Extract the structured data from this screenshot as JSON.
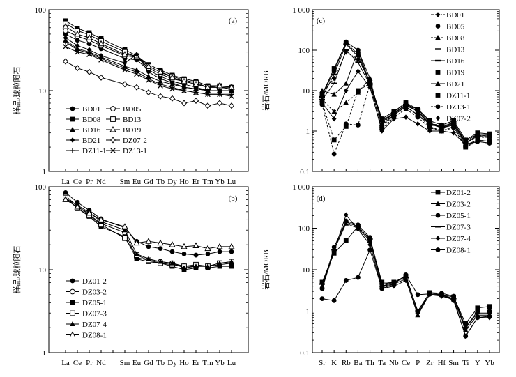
{
  "chart_data": [
    {
      "panel": "(a)",
      "type": "line",
      "ylabel": "样品/球粒陨石",
      "yscale": "log",
      "ylim": [
        1,
        100
      ],
      "yticks": [
        "1",
        "10",
        "100"
      ],
      "categories": [
        "La",
        "Ce",
        "Pr",
        "Nd",
        "Sm",
        "Eu",
        "Gd",
        "Tb",
        "Dy",
        "Ho",
        "Er",
        "Tm",
        "Yb",
        "Lu"
      ],
      "xlabels": [
        "La",
        "Ce",
        "Pr",
        "Nd",
        "",
        "Sm",
        "Eu",
        "Gd",
        "Tb",
        "Dy",
        "Ho",
        "Er",
        "Tm",
        "Yb",
        "Lu"
      ],
      "legend_cols": 2,
      "series": [
        {
          "name": "BD01",
          "marker": "circle",
          "values": [
            50,
            42,
            38,
            33,
            25,
            24,
            18,
            15,
            13,
            12,
            11,
            10,
            10,
            10
          ]
        },
        {
          "name": "BD05",
          "marker": "circle-open",
          "values": [
            55,
            47,
            42,
            36,
            27,
            26,
            19,
            16,
            14,
            13,
            12,
            11,
            11,
            11
          ]
        },
        {
          "name": "BD08",
          "marker": "square",
          "values": [
            73,
            59,
            52,
            44,
            32,
            27,
            21,
            18,
            15.5,
            14,
            13,
            11.5,
            11.5,
            11
          ]
        },
        {
          "name": "BD13",
          "marker": "square-open",
          "values": [
            68,
            55,
            49,
            41,
            30,
            26,
            20,
            17,
            15,
            13.5,
            12.5,
            11,
            11,
            10.5
          ]
        },
        {
          "name": "BD16",
          "marker": "triangle",
          "values": [
            42,
            33,
            30,
            26,
            20,
            18,
            15,
            13,
            12,
            11,
            10.5,
            10,
            10,
            10
          ]
        },
        {
          "name": "BD19",
          "marker": "triangle-open",
          "values": [
            62,
            50,
            45,
            38,
            28,
            27,
            20,
            17,
            14.5,
            13,
            12,
            11,
            11.5,
            11
          ]
        },
        {
          "name": "BD21",
          "marker": "diamond",
          "values": [
            45,
            36,
            32,
            27,
            22,
            28,
            17,
            14,
            12.5,
            11,
            10.5,
            10,
            10,
            10
          ]
        },
        {
          "name": "DZ07-2",
          "marker": "diamond-open",
          "values": [
            23,
            19,
            17,
            14.5,
            12,
            11,
            9.5,
            8.5,
            8,
            7,
            7.5,
            6.5,
            7,
            6.5
          ]
        },
        {
          "name": "DZ11-1",
          "marker": "plus",
          "values": [
            40,
            32,
            29,
            25,
            19,
            17,
            14,
            12,
            11,
            10,
            9.5,
            9,
            9,
            9
          ]
        },
        {
          "name": "DZ13-1",
          "marker": "cross",
          "values": [
            35,
            30,
            28,
            24,
            18,
            16,
            13.5,
            11.5,
            10.5,
            10,
            9.5,
            9,
            9,
            8.5
          ]
        }
      ]
    },
    {
      "panel": "(b)",
      "type": "line",
      "ylabel": "样品/球粒陨石",
      "yscale": "log",
      "ylim": [
        1,
        100
      ],
      "yticks": [
        "1",
        "10",
        "100"
      ],
      "categories": [
        "La",
        "Ce",
        "Pr",
        "Nd",
        "Sm",
        "Eu",
        "Gd",
        "Tb",
        "Dy",
        "Ho",
        "Er",
        "Tm",
        "Yb",
        "Lu"
      ],
      "xlabels": [
        "La",
        "Ce",
        "Pr",
        "Nd",
        "",
        "Sm",
        "Eu",
        "Gd",
        "Tb",
        "Dy",
        "Ho",
        "Er",
        "Tm",
        "Yb",
        "Lu"
      ],
      "legend_cols": 1,
      "series": [
        {
          "name": "DZ01-2",
          "marker": "circle",
          "values": [
            85,
            65,
            52,
            41,
            32,
            22,
            19,
            18,
            16.5,
            15.5,
            15,
            15.5,
            16.5,
            16.5
          ]
        },
        {
          "name": "DZ03-2",
          "marker": "circle-open",
          "values": [
            78,
            58,
            46,
            36,
            28,
            14,
            13,
            12.5,
            12,
            11,
            11,
            11,
            11.5,
            12
          ]
        },
        {
          "name": "DZ05-1",
          "marker": "square",
          "values": [
            75,
            55,
            44,
            33,
            25,
            13.5,
            12.5,
            12,
            11,
            10,
            10.5,
            10.5,
            11,
            11
          ]
        },
        {
          "name": "DZ07-3",
          "marker": "square-open",
          "values": [
            74,
            55,
            45,
            35,
            24,
            15,
            13,
            12,
            11.5,
            11,
            11.5,
            11,
            12,
            12.5
          ]
        },
        {
          "name": "DZ07-4",
          "marker": "triangle",
          "values": [
            72,
            60,
            49,
            38,
            30,
            15.5,
            13.5,
            12.5,
            12,
            10.5,
            11,
            11,
            12,
            12.5
          ]
        },
        {
          "name": "DZ08-1",
          "marker": "triangle-open",
          "values": [
            70,
            57,
            48,
            40,
            33,
            21,
            22,
            21,
            20,
            19,
            19.5,
            18,
            19,
            19
          ]
        }
      ]
    },
    {
      "panel": "(c)",
      "type": "line",
      "ylabel": "岩石/MORB",
      "yscale": "log",
      "ylim": [
        0.1,
        1000
      ],
      "yticks": [
        "0.1",
        "1",
        "10",
        "100",
        "1 000"
      ],
      "categories": [
        "Sr",
        "K",
        "Rb",
        "Ba",
        "Th",
        "Ta",
        "Nb",
        "Ce",
        "P",
        "Zr",
        "Hf",
        "Sm",
        "Ti",
        "Y",
        "Yb"
      ],
      "xlabels": [],
      "legend_cols": 1,
      "series": [
        {
          "name": "BD01",
          "marker": "diamond",
          "style": "dashdot",
          "values": [
            9,
            20,
            90,
            60,
            18,
            1.5,
            2.5,
            4,
            2.5,
            1.5,
            1.4,
            1.8,
            0.6,
            0.8,
            0.7
          ]
        },
        {
          "name": "BD05",
          "marker": "circle",
          "style": "solid",
          "values": [
            8,
            30,
            160,
            100,
            15,
            2,
            3,
            5,
            3,
            1.5,
            1.3,
            1.6,
            0.55,
            0.85,
            0.8
          ]
        },
        {
          "name": "BD08",
          "marker": "triangle",
          "style": "dashed",
          "values": [
            6,
            3,
            5,
            9,
            20,
            1.5,
            2.8,
            4.5,
            3,
            1.4,
            1.3,
            1.5,
            0.5,
            0.7,
            0.7
          ]
        },
        {
          "name": "BD13",
          "marker": "bar",
          "style": "solid",
          "values": [
            7,
            25,
            140,
            70,
            15,
            1.8,
            2.8,
            4.5,
            3.5,
            1.6,
            1.2,
            1.7,
            0.5,
            0.8,
            0.75
          ]
        },
        {
          "name": "BD16",
          "marker": "bar",
          "style": "solid",
          "values": [
            6,
            15,
            100,
            50,
            14,
            1.7,
            2.7,
            4.2,
            3.2,
            1.5,
            1.2,
            1.5,
            0.5,
            0.75,
            0.7
          ]
        },
        {
          "name": "BD19",
          "marker": "square",
          "style": "solid",
          "values": [
            8,
            35,
            150,
            80,
            16,
            2,
            3,
            5,
            3.5,
            1.8,
            1.4,
            1.8,
            0.6,
            0.9,
            0.85
          ]
        },
        {
          "name": "BD21",
          "marker": "triangle",
          "style": "solid",
          "values": [
            10,
            8,
            15,
            100,
            20,
            1.4,
            2.5,
            4,
            2.5,
            1.5,
            1.2,
            1.4,
            0.45,
            0.6,
            0.55
          ]
        },
        {
          "name": "DZ11-1",
          "marker": "square",
          "style": "dashed",
          "values": [
            5,
            0.6,
            1.3,
            10,
            15,
            1.2,
            2.5,
            4,
            2.5,
            1.3,
            1,
            1.3,
            0.4,
            0.6,
            0.55
          ]
        },
        {
          "name": "DZ13-1",
          "marker": "circle",
          "style": "dashed",
          "values": [
            4.5,
            0.27,
            1.5,
            1.4,
            14,
            1.1,
            2.2,
            3.5,
            2.2,
            1.2,
            1,
            1.2,
            0.4,
            0.55,
            0.5
          ]
        },
        {
          "name": "DZ07-2",
          "marker": "diamond",
          "style": "solid",
          "values": [
            5,
            2,
            10,
            30,
            12,
            1,
            2,
            2.2,
            1.5,
            1,
            1,
            0.9,
            0.45,
            0.55,
            0.5
          ]
        }
      ]
    },
    {
      "panel": "(d)",
      "type": "line",
      "ylabel": "岩石/MORB",
      "yscale": "log",
      "ylim": [
        0.1,
        1000
      ],
      "yticks": [
        "0.1",
        "1",
        "10",
        "100",
        "1 000"
      ],
      "categories": [
        "Sr",
        "K",
        "Rb",
        "Ba",
        "Th",
        "Ta",
        "Nb",
        "Ce",
        "P",
        "Zr",
        "Hf",
        "Sm",
        "Ti",
        "Y",
        "Yb"
      ],
      "xlabels": [
        "Sr",
        "K",
        "Rb",
        "Ba",
        "Th",
        "Ta",
        "Nb",
        "Ce",
        "P",
        "Zr",
        "Hf",
        "Sm",
        "Ti",
        "Y",
        "Yb"
      ],
      "legend_cols": 1,
      "series": [
        {
          "name": "DZ01-2",
          "marker": "square",
          "style": "solid",
          "values": [
            5,
            25,
            50,
            110,
            55,
            5,
            5,
            7,
            1,
            2.8,
            2.5,
            2.2,
            0.5,
            1.2,
            1.3
          ]
        },
        {
          "name": "DZ03-2",
          "marker": "triangle",
          "style": "solid",
          "values": [
            4,
            30,
            130,
            100,
            50,
            4,
            4.5,
            6,
            0.8,
            2.6,
            2.5,
            2,
            0.35,
            0.8,
            0.8
          ]
        },
        {
          "name": "DZ05-1",
          "marker": "circle",
          "style": "solid",
          "values": [
            3.5,
            35,
            150,
            120,
            60,
            4.5,
            5,
            7,
            1,
            2.8,
            2.7,
            2.3,
            0.4,
            1,
            1
          ]
        },
        {
          "name": "DZ07-3",
          "marker": "dash",
          "style": "solid",
          "values": [
            4.5,
            30,
            140,
            110,
            55,
            4,
            5,
            6.5,
            1,
            2.5,
            2.4,
            2,
            0.4,
            0.9,
            0.9
          ]
        },
        {
          "name": "DZ07-4",
          "marker": "diamond",
          "style": "solid",
          "values": [
            3.5,
            28,
            210,
            95,
            40,
            3.5,
            4,
            5.5,
            0.9,
            2.5,
            2.3,
            1.9,
            0.25,
            0.7,
            0.7
          ]
        },
        {
          "name": "DZ08-1",
          "marker": "circle",
          "style": "solid",
          "values": [
            2,
            1.8,
            5.5,
            6.5,
            30,
            3.5,
            4.5,
            7.5,
            2.5,
            2.6,
            2.5,
            1.8,
            0.25,
            0.7,
            0.75
          ]
        }
      ]
    }
  ]
}
